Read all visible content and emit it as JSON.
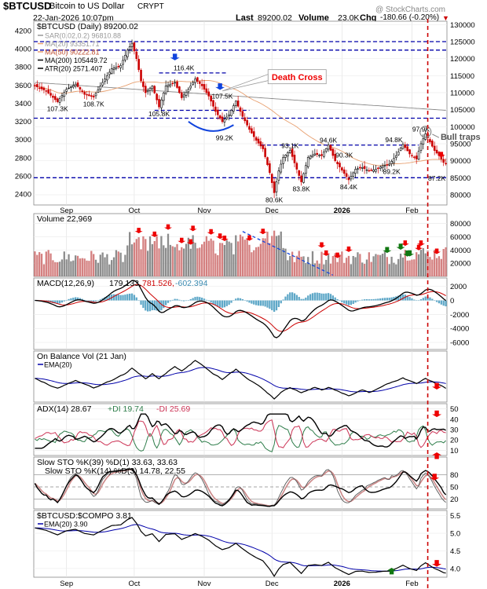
{
  "header": {
    "symbol": "$BTCUSD",
    "name": "Bitcoin to US Dollar",
    "exchange": "CRYPT",
    "date": "22-Jan-2026 10:07pm",
    "last_label": "Last",
    "last_value": "89200.02",
    "volume_label": "Volume",
    "volume_value": "23.0K",
    "chg_label": "Chg",
    "chg_value": "-180.66 (-0.20%)",
    "watermark": "@ StockCharts.com"
  },
  "colors": {
    "up": "#000000",
    "down": "#cc0000",
    "ma50": "#e8a070",
    "ma200": "#888888",
    "blue_line": "#0000aa",
    "red_dash": "#cc0000",
    "vol_up": "#8c8c8c",
    "vol_down": "#d48080",
    "arrow_red": "#ee0000",
    "arrow_green": "#117711",
    "arrow_blue": "#1144dd"
  },
  "chart_data": [
    {
      "id": "price",
      "type": "candlestick",
      "title": "$BTCUSD (Daily) 89200.02",
      "legend": [
        "SAR(0.02,0.2) 96810.88",
        "MA(20) 93351.71",
        "MA(50) 90222.81",
        "MA(200) 105449.72",
        "ATR(20) 2571.407"
      ],
      "y_left_ticks": [
        2400,
        2600,
        2800,
        3000,
        3200,
        3400,
        3600,
        3800,
        4000,
        4200
      ],
      "y_right_ticks": [
        "80000",
        "85000",
        "90000",
        "95000",
        "100000",
        "105000",
        "110000",
        "115000",
        "120000",
        "125000",
        "130000"
      ],
      "ylim": [
        77000,
        131000
      ],
      "x_labels": [
        "Sep",
        "Oct",
        "Nov",
        "Dec",
        "2026",
        "Feb"
      ],
      "anchors": [
        [
          0,
          112000
        ],
        [
          5,
          110500
        ],
        [
          10,
          107300
        ],
        [
          14,
          111000
        ],
        [
          18,
          112500
        ],
        [
          22,
          109500
        ],
        [
          26,
          108700
        ],
        [
          30,
          113000
        ],
        [
          34,
          117000
        ],
        [
          38,
          118000
        ],
        [
          41,
          122500
        ],
        [
          43,
          124500
        ],
        [
          45,
          120000
        ],
        [
          47,
          113500
        ],
        [
          49,
          110000
        ],
        [
          52,
          112000
        ],
        [
          55,
          105800
        ],
        [
          58,
          112000
        ],
        [
          62,
          113000
        ],
        [
          65,
          108500
        ],
        [
          68,
          111000
        ],
        [
          71,
          114000
        ],
        [
          74,
          112000
        ],
        [
          77,
          109000
        ],
        [
          80,
          104500
        ],
        [
          83,
          101500
        ],
        [
          86,
          103500
        ],
        [
          89,
          107500
        ],
        [
          92,
          103000
        ],
        [
          95,
          99200
        ],
        [
          98,
          96000
        ],
        [
          101,
          93500
        ],
        [
          104,
          86500
        ],
        [
          106,
          80600
        ],
        [
          108,
          87000
        ],
        [
          110,
          91000
        ],
        [
          113,
          93100
        ],
        [
          116,
          87500
        ],
        [
          118,
          83800
        ],
        [
          121,
          91000
        ],
        [
          124,
          92000
        ],
        [
          127,
          91500
        ],
        [
          130,
          94600
        ],
        [
          133,
          90000
        ],
        [
          136,
          87200
        ],
        [
          139,
          84400
        ],
        [
          142,
          87500
        ],
        [
          145,
          88000
        ],
        [
          148,
          87000
        ],
        [
          151,
          87500
        ],
        [
          154,
          88500
        ],
        [
          157,
          89000
        ],
        [
          160,
          91500
        ],
        [
          163,
          94800
        ],
        [
          166,
          92000
        ],
        [
          169,
          90500
        ],
        [
          171,
          95000
        ],
        [
          173,
          97900
        ],
        [
          175,
          95500
        ],
        [
          177,
          93000
        ],
        [
          179,
          91500
        ],
        [
          181,
          89500
        ],
        [
          182,
          89200
        ]
      ],
      "annotations": [
        {
          "text": "107.3K",
          "x": 10,
          "y": 105300
        },
        {
          "text": "108.7K",
          "x": 26,
          "y": 106700
        },
        {
          "text": "105.8K",
          "x": 55,
          "y": 103800
        },
        {
          "text": "116.4K",
          "x": 66,
          "y": 117300
        },
        {
          "text": "107.5K",
          "x": 83,
          "y": 109000
        },
        {
          "text": "99.2K",
          "x": 84,
          "y": 96700
        },
        {
          "text": "93.1K",
          "x": 113,
          "y": 94400
        },
        {
          "text": "94.6K",
          "x": 130,
          "y": 96000
        },
        {
          "text": "90.3K",
          "x": 137,
          "y": 91600
        },
        {
          "text": "94.8K",
          "x": 159,
          "y": 96200
        },
        {
          "text": "97.9K",
          "x": 171,
          "y": 99300
        },
        {
          "text": "89.2K",
          "x": 158,
          "y": 86800
        },
        {
          "text": "83.8K",
          "x": 118,
          "y": 81700
        },
        {
          "text": "84.4K",
          "x": 139,
          "y": 82300
        },
        {
          "text": "80.6K",
          "x": 106,
          "y": 78500
        },
        {
          "text": "87.2K",
          "x": 178,
          "y": 84900
        }
      ],
      "callouts": [
        {
          "text": "Death Cross",
          "x": 105,
          "y": 114000
        },
        {
          "text": "Bull traps",
          "x": 179,
          "y": 96800
        }
      ],
      "hlines": [
        {
          "kind": "blue",
          "y": 125000
        },
        {
          "kind": "blue",
          "y": 122500
        },
        {
          "kind": "blue",
          "y": 102500
        },
        {
          "kind": "blue",
          "y": 85000
        }
      ]
    },
    {
      "id": "volume",
      "type": "bar",
      "title": "Volume 22,969",
      "y_ticks": [
        "20000",
        "40000",
        "60000",
        "80000"
      ],
      "ylim": [
        0,
        95000
      ]
    },
    {
      "id": "macd",
      "type": "line",
      "title": "MACD(12,26,9) 179.133, 781.526, -602.394",
      "title_parts": [
        "MACD(12,26,9)",
        "179.133,",
        "781.526,",
        "-602.394"
      ],
      "y_ticks": [
        "2000",
        "0",
        "-2000",
        "-4000",
        "-6000"
      ],
      "ylim": [
        -7000,
        3200
      ]
    },
    {
      "id": "obv",
      "type": "line",
      "title": "On Balance Vol (21 Jan)",
      "ema_label": "EMA(20)"
    },
    {
      "id": "adx",
      "type": "line",
      "title": "ADX(14) 28.67 +DI 19.74 -DI 25.69",
      "title_parts": [
        "ADX(14) 28.67",
        "+DI 19.74",
        "-DI 25.69"
      ],
      "y_ticks": [
        "10",
        "20",
        "30",
        "40",
        "50"
      ],
      "ylim": [
        5,
        55
      ]
    },
    {
      "id": "sto",
      "type": "line",
      "title": "Slow STO %K(39) %D(1) 33.63, 33.63",
      "title2": "Slow STO %K(14) %D(3) 14.78, 22.55",
      "title2_value": "22.55",
      "y_ticks": [
        "20",
        "50",
        "80"
      ],
      "ylim": [
        0,
        100
      ]
    },
    {
      "id": "rs",
      "type": "line",
      "title": "$BTCUSD:$COMPO 3.81",
      "ema_label": "EMA(20) 3.90",
      "y_ticks": [
        "4.0",
        "4.5",
        "5.0",
        "5.5"
      ],
      "ylim": [
        3.75,
        5.65
      ]
    }
  ]
}
